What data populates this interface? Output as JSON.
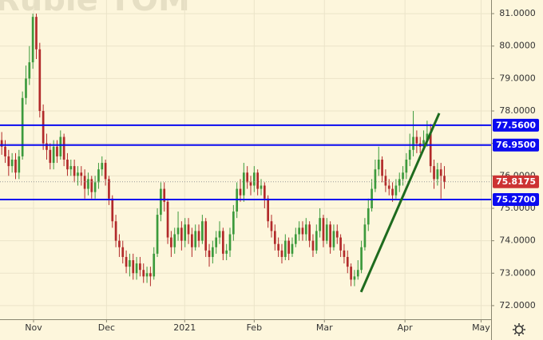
{
  "chart_data": {
    "type": "candlestick",
    "watermark": "Ruble TOM",
    "up_color": "#3c9a3c",
    "down_color": "#b22a2a",
    "open": [
      77.1,
      76.9,
      76.6,
      76.3,
      76.5,
      76.1,
      76.6,
      78.4,
      79.0,
      79.5,
      80.9,
      79.9,
      78.0,
      77.0,
      76.8,
      76.4,
      76.9,
      76.6,
      77.2,
      76.5,
      76.2,
      76.3,
      76.0,
      76.1,
      76.0,
      75.6,
      75.9,
      75.5,
      75.8,
      76.2,
      76.4,
      75.9,
      75.3,
      74.6,
      74.0,
      73.8,
      73.5,
      73.2,
      73.4,
      73.0,
      73.3,
      73.1,
      72.9,
      73.0,
      72.9,
      73.6,
      74.8,
      75.6,
      75.2,
      74.1,
      73.8,
      74.2,
      74.4,
      74.0,
      74.5,
      74.2,
      73.8,
      74.3,
      74.0,
      74.6,
      73.7,
      73.5,
      73.8,
      74.1,
      74.3,
      73.6,
      73.7,
      74.2,
      74.9,
      75.6,
      75.4,
      76.1,
      75.8,
      75.7,
      76.1,
      75.6,
      75.7,
      75.3,
      74.6,
      74.3,
      73.9,
      73.7,
      73.5,
      74.0,
      73.6,
      73.9,
      74.2,
      74.4,
      74.2,
      74.5,
      74.0,
      73.7,
      74.3,
      74.7,
      74.0,
      74.5,
      73.8,
      74.3,
      74.1,
      73.7,
      73.5,
      73.2,
      72.8,
      72.9,
      73.1,
      73.8,
      74.5,
      75.0,
      75.6,
      76.2,
      76.5,
      76.0,
      75.7,
      75.6,
      75.4,
      75.7,
      75.9,
      76.1,
      76.5,
      76.8,
      77.2,
      77.0,
      76.9,
      77.1,
      77.3,
      76.3,
      75.9,
      76.2,
      76.0
    ],
    "high": [
      77.35,
      77.1,
      76.8,
      76.7,
      76.7,
      76.8,
      78.6,
      79.4,
      80.0,
      81.0,
      81.0,
      80.1,
      78.2,
      77.3,
      77.0,
      77.1,
      77.1,
      77.4,
      77.3,
      76.7,
      76.5,
      76.5,
      76.3,
      76.3,
      76.2,
      76.1,
      76.0,
      76.0,
      76.4,
      76.6,
      76.5,
      76.0,
      75.4,
      74.8,
      74.2,
      74.0,
      73.7,
      73.6,
      73.6,
      73.5,
      73.5,
      73.3,
      73.2,
      73.2,
      73.8,
      75.0,
      75.8,
      75.8,
      75.3,
      74.3,
      74.4,
      74.9,
      74.6,
      74.7,
      74.7,
      74.4,
      74.5,
      74.5,
      74.8,
      74.7,
      73.9,
      74.0,
      74.3,
      74.6,
      74.4,
      73.9,
      74.4,
      75.1,
      75.8,
      75.9,
      76.4,
      76.3,
      76.0,
      76.3,
      76.2,
      75.9,
      75.8,
      75.4,
      74.8,
      74.5,
      74.1,
      73.9,
      74.2,
      74.1,
      74.1,
      74.4,
      74.6,
      74.6,
      74.7,
      74.6,
      74.2,
      74.5,
      75.0,
      74.8,
      74.7,
      74.6,
      74.5,
      74.5,
      74.2,
      73.9,
      73.7,
      73.3,
      73.1,
      73.4,
      74.0,
      74.7,
      75.3,
      75.9,
      76.5,
      76.9,
      76.6,
      76.2,
      75.9,
      75.8,
      75.9,
      76.1,
      76.3,
      76.7,
      77.3,
      78.0,
      77.4,
      77.2,
      77.4,
      77.7,
      77.6,
      76.5,
      76.4,
      76.4,
      76.3
    ],
    "low": [
      76.65,
      76.4,
      76.0,
      76.1,
      75.9,
      75.9,
      76.5,
      78.2,
      78.8,
      79.3,
      79.6,
      77.8,
      76.8,
      76.5,
      76.2,
      76.2,
      76.4,
      76.5,
      76.3,
      76.0,
      76.0,
      75.8,
      75.7,
      75.7,
      75.3,
      75.4,
      75.3,
      75.3,
      75.6,
      76.0,
      75.7,
      75.1,
      74.4,
      73.8,
      73.5,
      73.3,
      73.0,
      72.9,
      72.8,
      72.8,
      72.9,
      72.7,
      72.7,
      72.6,
      72.8,
      73.5,
      74.6,
      74.9,
      73.9,
      73.5,
      73.6,
      74.0,
      73.7,
      73.8,
      73.9,
      73.5,
      73.7,
      73.8,
      73.9,
      73.5,
      73.2,
      73.3,
      73.6,
      73.9,
      73.4,
      73.4,
      73.5,
      74.0,
      74.7,
      75.2,
      75.2,
      75.6,
      75.4,
      75.5,
      75.4,
      75.4,
      75.0,
      74.4,
      74.1,
      73.7,
      73.5,
      73.3,
      73.4,
      73.4,
      73.5,
      73.8,
      74.0,
      74.0,
      74.0,
      73.8,
      73.5,
      73.6,
      74.1,
      73.8,
      73.9,
      73.6,
      73.7,
      73.9,
      73.5,
      73.3,
      73.0,
      72.6,
      72.6,
      72.8,
      73.0,
      73.7,
      74.3,
      74.9,
      75.5,
      76.0,
      75.8,
      75.5,
      75.4,
      75.2,
      75.3,
      75.5,
      75.7,
      75.9,
      76.3,
      76.6,
      76.7,
      76.7,
      76.8,
      76.9,
      76.1,
      75.6,
      75.7,
      75.3,
      75.6
    ],
    "close": [
      76.9,
      76.6,
      76.3,
      76.5,
      76.1,
      76.6,
      78.4,
      79.0,
      79.5,
      80.9,
      79.9,
      78.0,
      77.0,
      76.8,
      76.4,
      76.9,
      76.6,
      77.2,
      76.5,
      76.2,
      76.3,
      76.0,
      76.1,
      76.0,
      75.6,
      75.9,
      75.5,
      75.8,
      76.2,
      76.4,
      75.9,
      75.3,
      74.6,
      74.0,
      73.8,
      73.5,
      73.2,
      73.4,
      73.0,
      73.3,
      73.1,
      72.9,
      73.0,
      72.9,
      73.6,
      74.8,
      75.6,
      75.2,
      74.1,
      73.8,
      74.2,
      74.4,
      74.0,
      74.5,
      74.2,
      73.8,
      74.3,
      74.0,
      74.6,
      73.7,
      73.5,
      73.8,
      74.1,
      74.3,
      73.6,
      73.7,
      74.2,
      74.9,
      75.6,
      75.4,
      76.1,
      75.8,
      75.7,
      76.1,
      75.6,
      75.7,
      75.3,
      74.6,
      74.3,
      73.9,
      73.7,
      73.5,
      74.0,
      73.6,
      73.9,
      74.2,
      74.4,
      74.2,
      74.5,
      74.0,
      73.7,
      74.3,
      74.7,
      74.0,
      74.5,
      73.8,
      74.3,
      74.1,
      73.7,
      73.5,
      73.2,
      72.8,
      72.9,
      73.1,
      73.8,
      74.5,
      75.0,
      75.6,
      76.2,
      76.5,
      76.0,
      75.7,
      75.6,
      75.4,
      75.7,
      75.9,
      76.1,
      76.5,
      76.8,
      77.2,
      77.0,
      76.9,
      77.1,
      77.3,
      76.3,
      75.9,
      76.2,
      76.0,
      75.8175
    ],
    "xlim": [
      -0.5,
      141.5
    ],
    "xticks": [
      {
        "value": 9.2,
        "label": "Nov"
      },
      {
        "value": 30.3,
        "label": "Dec"
      },
      {
        "value": 52.9,
        "label": "2021"
      },
      {
        "value": 73,
        "label": "Feb"
      },
      {
        "value": 93.3,
        "label": "Mar"
      },
      {
        "value": 116.6,
        "label": "Apr"
      },
      {
        "value": 138.6,
        "label": "May"
      }
    ],
    "ylim": [
      71.58,
      81.42
    ],
    "yticks": [
      {
        "value": 72,
        "label": "72.0000"
      },
      {
        "value": 73,
        "label": "73.0000"
      },
      {
        "value": 74,
        "label": "74.0000"
      },
      {
        "value": 75,
        "label": "75.0000"
      },
      {
        "value": 76,
        "label": "76.0000"
      },
      {
        "value": 77,
        "label": "77.0000"
      },
      {
        "value": 78,
        "label": "78.0000"
      },
      {
        "value": 79,
        "label": "79.0000"
      },
      {
        "value": 80,
        "label": "80.0000"
      },
      {
        "value": 81,
        "label": "81.0000"
      }
    ],
    "grid": true,
    "levels": [
      {
        "value": 77.56,
        "label": "77.5600"
      },
      {
        "value": 76.95,
        "label": "76.9500"
      },
      {
        "value": 75.27,
        "label": "75.2700"
      }
    ],
    "level_color": "#0a0af0",
    "last_price": {
      "value": 75.8175,
      "label": "75.8175",
      "color": "#cc3333"
    },
    "trendline": {
      "x": [
        103.9,
        126.5
      ],
      "y": [
        72.42,
        77.93
      ],
      "color": "#1e6b1e"
    }
  }
}
